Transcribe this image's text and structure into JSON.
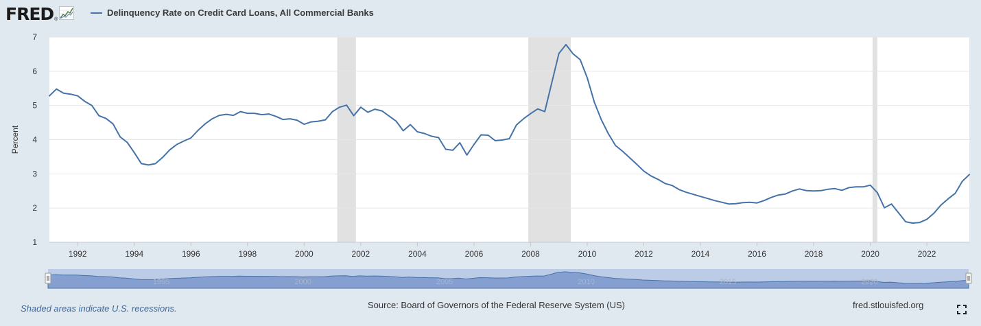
{
  "header": {
    "logo_text": "FRED",
    "logo_reg": "®",
    "series_title": "Delinquency Rate on Credit Card Loans, All Commercial Banks"
  },
  "footer": {
    "note": "Shaded areas indicate U.S. recessions.",
    "source": "Source: Board of Governors of the Federal Reserve System (US)",
    "url": "fred.stlouisfed.org"
  },
  "colors": {
    "line": "#4572a7",
    "recession": "#e1e1e1",
    "grid": "#e6e6e6",
    "background": "#e1e9f0",
    "navigator_mask": "#bccbe6",
    "navigator_fill": "#7b98cc"
  },
  "chart_data": {
    "type": "line",
    "title": "Delinquency Rate on Credit Card Loans, All Commercial Banks",
    "ylabel": "Percent",
    "xlabel": "",
    "ylim": [
      1,
      7
    ],
    "yticks": [
      1,
      2,
      3,
      4,
      5,
      6,
      7
    ],
    "xlim": [
      1991.0,
      2023.5
    ],
    "xticks": [
      1992,
      1994,
      1996,
      1998,
      2000,
      2002,
      2004,
      2006,
      2008,
      2010,
      2012,
      2014,
      2016,
      2018,
      2020,
      2022
    ],
    "grid": "horizontal",
    "recessions": [
      [
        2001.17,
        2001.83
      ],
      [
        2007.92,
        2009.42
      ],
      [
        2020.08,
        2020.25
      ]
    ],
    "navigator_xticks": [
      1995,
      2000,
      2005,
      2010,
      2015,
      2020
    ],
    "series": [
      {
        "name": "Delinquency Rate on Credit Card Loans, All Commercial Banks",
        "x": [
          1991.0,
          1991.25,
          1991.5,
          1991.75,
          1992.0,
          1992.25,
          1992.5,
          1992.75,
          1993.0,
          1993.25,
          1993.5,
          1993.75,
          1994.0,
          1994.25,
          1994.5,
          1994.75,
          1995.0,
          1995.25,
          1995.5,
          1995.75,
          1996.0,
          1996.25,
          1996.5,
          1996.75,
          1997.0,
          1997.25,
          1997.5,
          1997.75,
          1998.0,
          1998.25,
          1998.5,
          1998.75,
          1999.0,
          1999.25,
          1999.5,
          1999.75,
          2000.0,
          2000.25,
          2000.5,
          2000.75,
          2001.0,
          2001.25,
          2001.5,
          2001.75,
          2002.0,
          2002.25,
          2002.5,
          2002.75,
          2003.0,
          2003.25,
          2003.5,
          2003.75,
          2004.0,
          2004.25,
          2004.5,
          2004.75,
          2005.0,
          2005.25,
          2005.5,
          2005.75,
          2006.0,
          2006.25,
          2006.5,
          2006.75,
          2007.0,
          2007.25,
          2007.5,
          2007.75,
          2008.0,
          2008.25,
          2008.5,
          2008.75,
          2009.0,
          2009.25,
          2009.5,
          2009.75,
          2010.0,
          2010.25,
          2010.5,
          2010.75,
          2011.0,
          2011.25,
          2011.5,
          2011.75,
          2012.0,
          2012.25,
          2012.5,
          2012.75,
          2013.0,
          2013.25,
          2013.5,
          2013.75,
          2014.0,
          2014.25,
          2014.5,
          2014.75,
          2015.0,
          2015.25,
          2015.5,
          2015.75,
          2016.0,
          2016.25,
          2016.5,
          2016.75,
          2017.0,
          2017.25,
          2017.5,
          2017.75,
          2018.0,
          2018.25,
          2018.5,
          2018.75,
          2019.0,
          2019.25,
          2019.5,
          2019.75,
          2020.0,
          2020.25,
          2020.5,
          2020.75,
          2021.0,
          2021.25,
          2021.5,
          2021.75,
          2022.0,
          2022.25,
          2022.5,
          2022.75,
          2023.0,
          2023.25,
          2023.5
        ],
        "values": [
          5.28,
          5.48,
          5.36,
          5.33,
          5.28,
          5.12,
          5.0,
          4.7,
          4.62,
          4.46,
          4.08,
          3.92,
          3.62,
          3.3,
          3.26,
          3.3,
          3.48,
          3.7,
          3.86,
          3.96,
          4.05,
          4.27,
          4.46,
          4.61,
          4.71,
          4.74,
          4.71,
          4.82,
          4.77,
          4.77,
          4.73,
          4.75,
          4.68,
          4.59,
          4.61,
          4.57,
          4.45,
          4.52,
          4.54,
          4.58,
          4.82,
          4.95,
          5.01,
          4.7,
          4.95,
          4.8,
          4.89,
          4.84,
          4.69,
          4.54,
          4.26,
          4.44,
          4.23,
          4.18,
          4.1,
          4.06,
          3.72,
          3.69,
          3.91,
          3.55,
          3.86,
          4.14,
          4.13,
          3.97,
          3.99,
          4.03,
          4.43,
          4.61,
          4.76,
          4.9,
          4.82,
          5.67,
          6.52,
          6.78,
          6.51,
          6.34,
          5.81,
          5.1,
          4.58,
          4.17,
          3.83,
          3.66,
          3.47,
          3.28,
          3.08,
          2.94,
          2.84,
          2.72,
          2.66,
          2.54,
          2.46,
          2.4,
          2.34,
          2.28,
          2.22,
          2.17,
          2.12,
          2.13,
          2.16,
          2.17,
          2.15,
          2.22,
          2.31,
          2.38,
          2.41,
          2.5,
          2.56,
          2.51,
          2.5,
          2.51,
          2.55,
          2.57,
          2.52,
          2.6,
          2.62,
          2.62,
          2.67,
          2.45,
          2.01,
          2.12,
          1.86,
          1.6,
          1.56,
          1.58,
          1.67,
          1.85,
          2.09,
          2.27,
          2.43,
          2.78,
          2.98
        ]
      }
    ]
  }
}
